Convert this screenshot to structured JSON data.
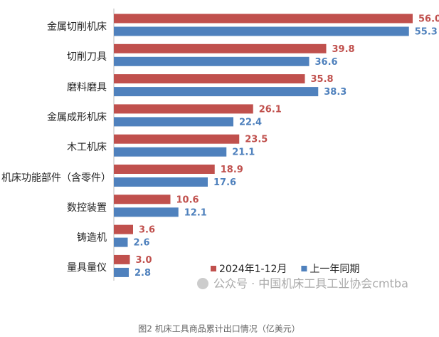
{
  "chart_data": {
    "type": "hbar",
    "categories": [
      "金属切削机床",
      "切削刀具",
      "磨料磨具",
      "金属成形机床",
      "木工机床",
      "机床功能部件（含零件）",
      "数控装置",
      "铸造机",
      "量具量仪"
    ],
    "series": [
      {
        "name": "2024年1-12月",
        "color": "#c0504d",
        "values": [
          56.0,
          39.8,
          35.8,
          26.1,
          23.5,
          18.9,
          10.6,
          3.6,
          3.0
        ],
        "value_labels": [
          "56.0",
          "39.8",
          "35.8",
          "26.1",
          "23.5",
          "18.9",
          "10.6",
          "3.6",
          "3.0"
        ]
      },
      {
        "name": "上一年同期",
        "color": "#4f81bd",
        "values": [
          55.3,
          36.6,
          38.3,
          22.4,
          21.1,
          17.6,
          12.1,
          2.6,
          2.8
        ],
        "value_labels": [
          "55.3",
          "36.6",
          "38.3",
          "22.4",
          "21.1",
          "17.6",
          "12.1",
          "2.6",
          "2.8"
        ]
      }
    ],
    "watermark": "公众号 · 中国机床工具工业协会cmtba",
    "caption": "图2 机床工具商品累计出口情况（亿美元）"
  }
}
